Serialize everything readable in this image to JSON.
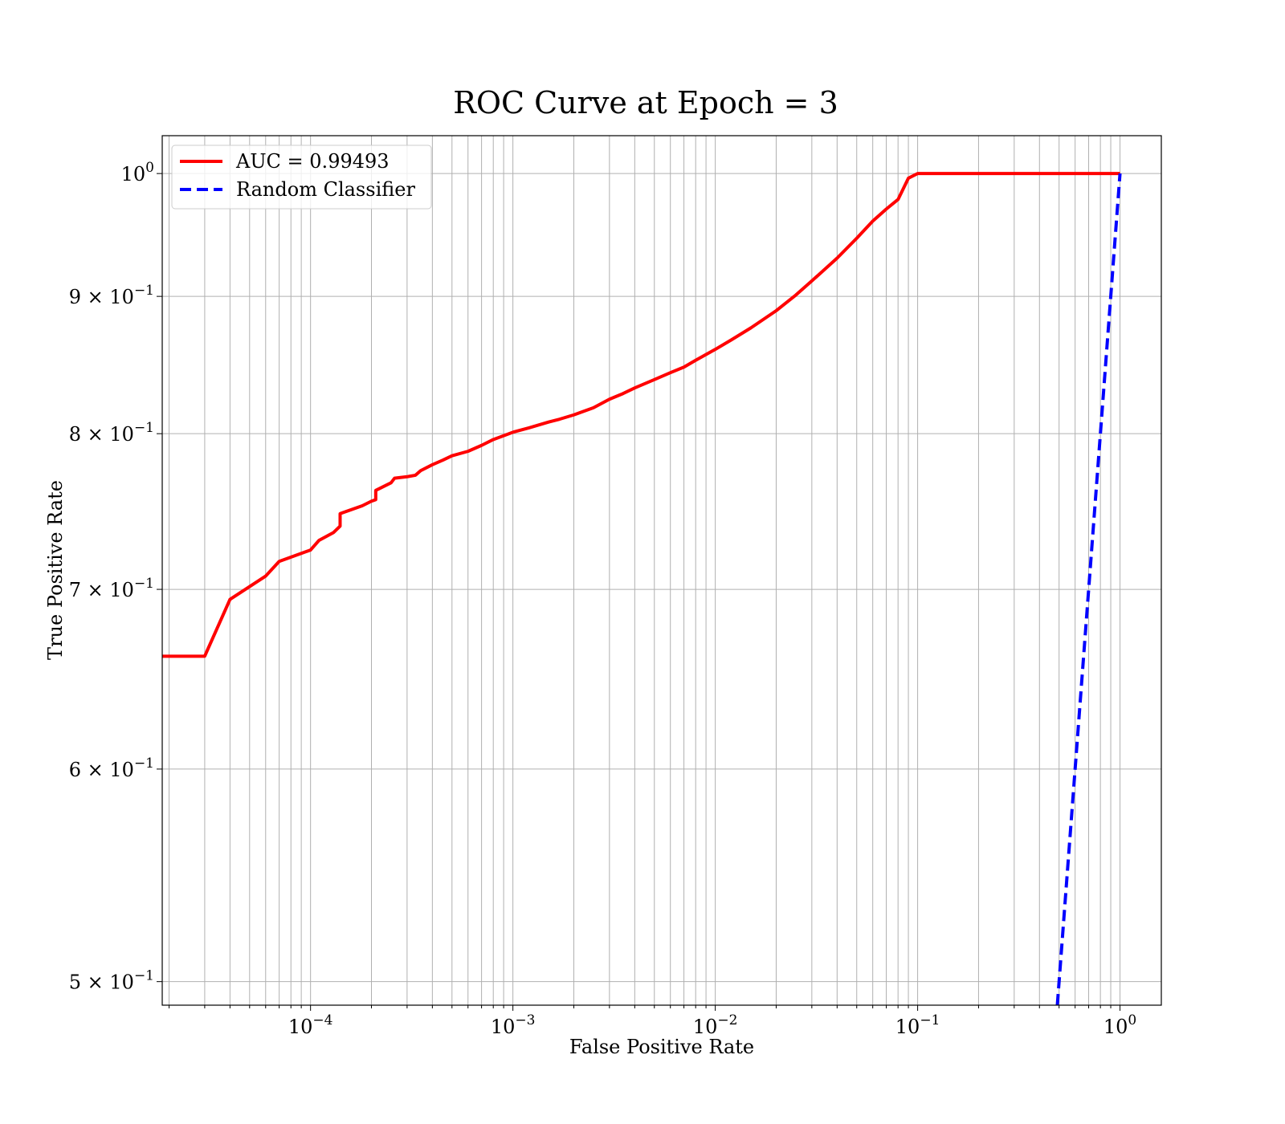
{
  "chart_data": {
    "type": "line",
    "title": "ROC Curve at Epoch = 3",
    "xlabel": "False Positive Rate",
    "ylabel": "True Positive Rate",
    "xscale": "log",
    "yscale": "log",
    "xlim": [
      1.85e-05,
      1.6
    ],
    "ylim": [
      0.49,
      1.033
    ],
    "grid": "both major and minor",
    "legend_position": "top-left",
    "x_tick_labels": [
      {
        "base": "10",
        "exp": "−4",
        "value": 0.0001
      },
      {
        "base": "10",
        "exp": "−3",
        "value": 0.001
      },
      {
        "base": "10",
        "exp": "−2",
        "value": 0.01
      },
      {
        "base": "10",
        "exp": "−1",
        "value": 0.1
      },
      {
        "base": "10",
        "exp": "0",
        "value": 1
      }
    ],
    "y_tick_labels": [
      {
        "mant": "5 × 10",
        "exp": "−1",
        "value": 0.5
      },
      {
        "mant": "6 × 10",
        "exp": "−1",
        "value": 0.6
      },
      {
        "mant": "7 × 10",
        "exp": "−1",
        "value": 0.7
      },
      {
        "mant": "8 × 10",
        "exp": "−1",
        "value": 0.8
      },
      {
        "mant": "9 × 10",
        "exp": "−1",
        "value": 0.9
      },
      {
        "mant": "10",
        "exp": "0",
        "value": 1.0
      }
    ],
    "series": [
      {
        "name": "AUC = 0.99493",
        "color": "#ff0000",
        "style": "solid",
        "points": [
          [
            1.85e-05,
            0.661
          ],
          [
            3e-05,
            0.661
          ],
          [
            4e-05,
            0.694
          ],
          [
            6e-05,
            0.708
          ],
          [
            7e-05,
            0.717
          ],
          [
            0.0001,
            0.724
          ],
          [
            0.00011,
            0.73
          ],
          [
            0.00013,
            0.735
          ],
          [
            0.00014,
            0.739
          ],
          [
            0.00014,
            0.747
          ],
          [
            0.00018,
            0.752
          ],
          [
            0.0002,
            0.755
          ],
          [
            0.00021,
            0.756
          ],
          [
            0.00021,
            0.762
          ],
          [
            0.00025,
            0.767
          ],
          [
            0.00026,
            0.77
          ],
          [
            0.0003,
            0.771
          ],
          [
            0.00033,
            0.772
          ],
          [
            0.00035,
            0.775
          ],
          [
            0.0004,
            0.779
          ],
          [
            0.00045,
            0.782
          ],
          [
            0.0005,
            0.785
          ],
          [
            0.0006,
            0.788
          ],
          [
            0.0007,
            0.792
          ],
          [
            0.0008,
            0.796
          ],
          [
            0.001,
            0.801
          ],
          [
            0.0012,
            0.804
          ],
          [
            0.0015,
            0.808
          ],
          [
            0.0017,
            0.81
          ],
          [
            0.002,
            0.813
          ],
          [
            0.0025,
            0.818
          ],
          [
            0.003,
            0.824
          ],
          [
            0.0035,
            0.828
          ],
          [
            0.004,
            0.832
          ],
          [
            0.005,
            0.838
          ],
          [
            0.006,
            0.843
          ],
          [
            0.007,
            0.847
          ],
          [
            0.008,
            0.852
          ],
          [
            0.01,
            0.86
          ],
          [
            0.012,
            0.867
          ],
          [
            0.015,
            0.876
          ],
          [
            0.02,
            0.889
          ],
          [
            0.025,
            0.901
          ],
          [
            0.03,
            0.912
          ],
          [
            0.04,
            0.93
          ],
          [
            0.05,
            0.946
          ],
          [
            0.06,
            0.96
          ],
          [
            0.07,
            0.97
          ],
          [
            0.08,
            0.978
          ],
          [
            0.09,
            0.996
          ],
          [
            0.1,
            1.0
          ],
          [
            1.0,
            1.0
          ]
        ]
      },
      {
        "name": "Random Classifier",
        "color": "#0000ff",
        "style": "dashed",
        "points": [
          [
            0.49,
            0.49
          ],
          [
            1.0,
            1.0
          ]
        ]
      }
    ]
  }
}
